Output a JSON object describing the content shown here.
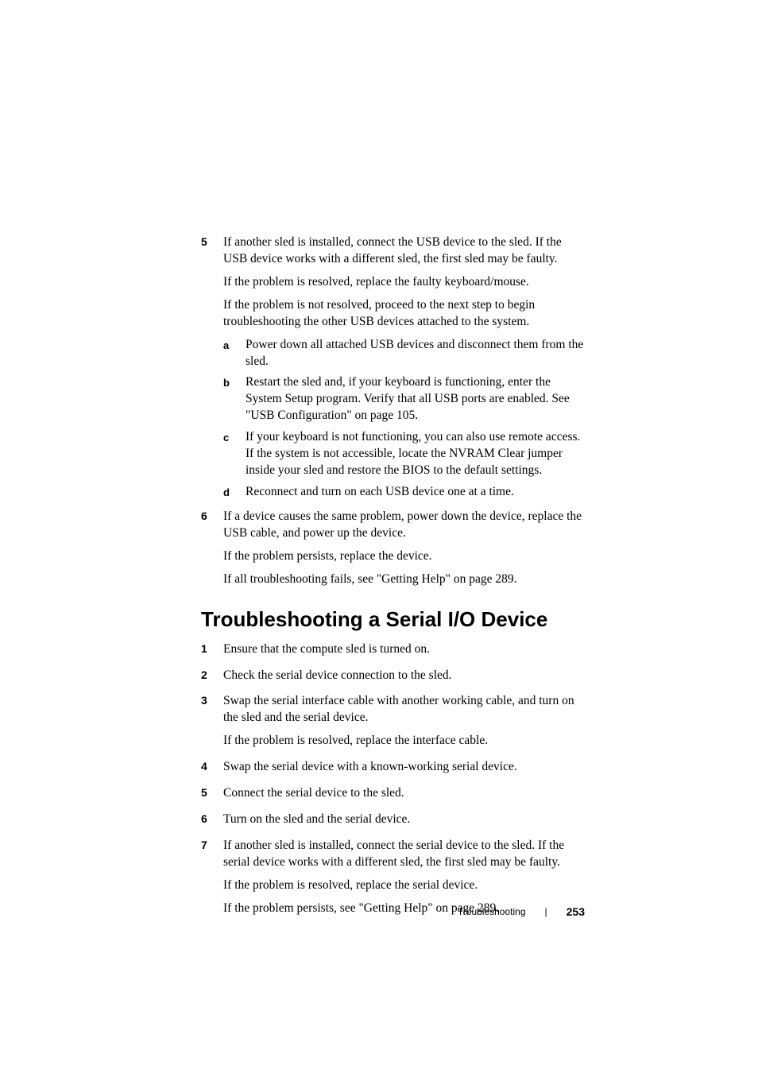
{
  "section_usb": {
    "items": [
      {
        "marker": "5",
        "paragraphs": [
          "If another sled is installed, connect the USB device to the sled. If the USB device works with a different sled, the first sled may be faulty.",
          "If the problem is resolved, replace the faulty keyboard/mouse.",
          "If the problem is not resolved, proceed to the next step to begin troubleshooting the other USB devices attached to the system."
        ],
        "subitems": [
          {
            "marker": "a",
            "text": "Power down all attached USB devices and disconnect them from the sled."
          },
          {
            "marker": "b",
            "text": "Restart the sled and, if your keyboard is functioning, enter the System Setup program. Verify that all USB ports are enabled. See \"USB Configuration\" on page 105."
          },
          {
            "marker": "c",
            "text": "If your keyboard is not functioning, you can also use remote access. If the system is not accessible, locate the NVRAM Clear jumper inside your sled and restore the BIOS to the default settings."
          },
          {
            "marker": "d",
            "text": "Reconnect and turn on each USB device one at a time."
          }
        ]
      },
      {
        "marker": "6",
        "paragraphs": [
          "If a device causes the same problem, power down the device, replace the USB cable, and power up the device.",
          "If the problem persists, replace the device.",
          "If all troubleshooting fails, see \"Getting Help\" on page 289."
        ],
        "subitems": []
      }
    ]
  },
  "section_serial": {
    "heading": "Troubleshooting a Serial I/O Device",
    "items": [
      {
        "marker": "1",
        "paragraphs": [
          "Ensure that the compute sled is turned on."
        ]
      },
      {
        "marker": "2",
        "paragraphs": [
          "Check the serial device connection to the sled."
        ]
      },
      {
        "marker": "3",
        "paragraphs": [
          "Swap the serial interface cable with another working cable, and turn on the sled and the serial device.",
          "If the problem is resolved, replace the interface cable."
        ]
      },
      {
        "marker": "4",
        "paragraphs": [
          "Swap the serial device with a known-working serial device."
        ]
      },
      {
        "marker": "5",
        "paragraphs": [
          "Connect the serial device to the sled."
        ]
      },
      {
        "marker": "6",
        "paragraphs": [
          "Turn on the sled and the serial device."
        ]
      },
      {
        "marker": "7",
        "paragraphs": [
          "If another sled is installed, connect the serial device to the sled. If the serial device works with a different sled, the first sled may be faulty.",
          "If the problem is resolved, replace the serial device.",
          "If the problem persists, see \"Getting Help\" on page 289."
        ]
      }
    ]
  },
  "footer": {
    "label": "Troubleshooting",
    "page": "253"
  }
}
